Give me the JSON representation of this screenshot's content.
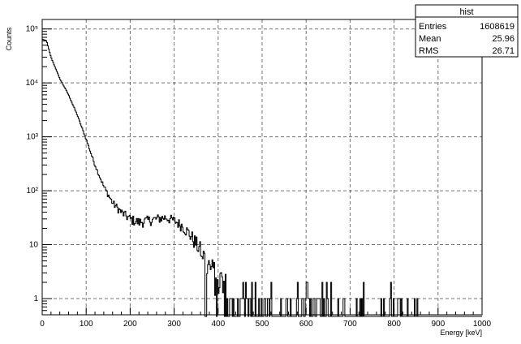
{
  "chart_data": {
    "type": "histogram",
    "xlabel": "Energy [keV]",
    "ylabel": "Counts",
    "xlim": [
      0,
      1000
    ],
    "ylog": true,
    "ylim": [
      0.5,
      150000
    ],
    "grid": true,
    "x_ticks": [
      "0",
      "100",
      "200",
      "300",
      "400",
      "500",
      "600",
      "700",
      "800",
      "900",
      "1000"
    ],
    "y_ticks": [
      {
        "value": 1,
        "label": "1"
      },
      {
        "value": 10,
        "label": "10"
      },
      {
        "value": 100,
        "label": "10²"
      },
      {
        "value": 1000,
        "label": "10³"
      },
      {
        "value": 10000,
        "label": "10⁴"
      },
      {
        "value": 100000,
        "label": "10⁵"
      }
    ],
    "bin_width": 2,
    "envelope": [
      [
        0,
        65000
      ],
      [
        10,
        60000
      ],
      [
        20,
        30000
      ],
      [
        40,
        12000
      ],
      [
        60,
        6000
      ],
      [
        80,
        2500
      ],
      [
        100,
        900
      ],
      [
        120,
        300
      ],
      [
        140,
        120
      ],
      [
        160,
        60
      ],
      [
        180,
        40
      ],
      [
        200,
        30
      ],
      [
        220,
        26
      ],
      [
        240,
        28
      ],
      [
        260,
        30
      ],
      [
        280,
        32
      ],
      [
        300,
        28
      ],
      [
        320,
        22
      ],
      [
        340,
        14
      ],
      [
        360,
        8
      ],
      [
        380,
        4
      ],
      [
        400,
        2.5
      ],
      [
        420,
        1.5
      ],
      [
        450,
        1
      ],
      [
        520,
        1
      ],
      [
        600,
        1
      ],
      [
        1000,
        1
      ]
    ],
    "stats": {
      "title": "hist",
      "rows": [
        {
          "label": "Entries",
          "value": "1608619"
        },
        {
          "label": "Mean",
          "value": "25.96"
        },
        {
          "label": "RMS",
          "value": "26.71"
        }
      ]
    }
  }
}
